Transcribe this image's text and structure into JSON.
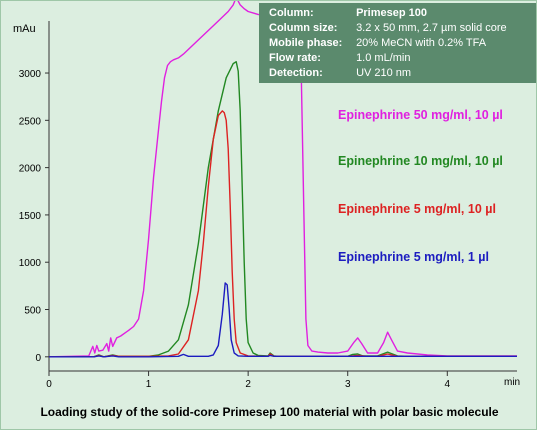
{
  "info_box": {
    "rows": [
      {
        "label": "Column:",
        "value": "Primesep 100"
      },
      {
        "label": "Column size:",
        "value": "3.2 x 50 mm,  2.7 µm solid core"
      },
      {
        "label": "Mobile phase:",
        "value": "20% MeCN with 0.2% TFA"
      },
      {
        "label": "Flow rate:",
        "value": "1.0 mL/min"
      },
      {
        "label": "Detection:",
        "value": "UV 210 nm"
      }
    ]
  },
  "caption": "Loading study of the solid-core Primesep 100 material with polar basic molecule",
  "chart_data": {
    "type": "line",
    "title": "",
    "ylabel": "mAu",
    "xlabel": "min",
    "xlim": [
      0,
      4.7
    ],
    "ylim": [
      -150,
      3550
    ],
    "grid": false,
    "legend_placement": "right",
    "x_ticks": [
      0,
      1,
      2,
      3,
      4
    ],
    "y_ticks": [
      0,
      500,
      1000,
      1500,
      2000,
      2500,
      3000
    ],
    "series": [
      {
        "name": "Epinephrine 50  mg/ml, 10 µl",
        "color": "#e020e0",
        "x": [
          0,
          0.4,
          0.44,
          0.46,
          0.48,
          0.5,
          0.54,
          0.58,
          0.6,
          0.62,
          0.64,
          0.68,
          0.72,
          0.8,
          0.85,
          0.9,
          0.95,
          1.0,
          1.05,
          1.1,
          1.13,
          1.16,
          1.19,
          1.22,
          1.25,
          1.3,
          1.35,
          1.4,
          1.5,
          1.6,
          1.7,
          1.8,
          1.85,
          1.88,
          1.92,
          1.96,
          2.0,
          2.1,
          2.2,
          2.3,
          2.4,
          2.48,
          2.53,
          2.56,
          2.58,
          2.6,
          2.64,
          2.7,
          2.8,
          2.9,
          3.0,
          3.06,
          3.1,
          3.14,
          3.2,
          3.3,
          3.36,
          3.4,
          3.44,
          3.5,
          3.6,
          3.8,
          4.0,
          4.2,
          4.4,
          4.7
        ],
        "y": [
          0,
          10,
          110,
          40,
          120,
          60,
          70,
          140,
          60,
          200,
          110,
          200,
          220,
          280,
          320,
          400,
          700,
          1250,
          1900,
          2400,
          2700,
          2950,
          3080,
          3120,
          3140,
          3160,
          3200,
          3250,
          3350,
          3450,
          3550,
          3650,
          3720,
          3800,
          3720,
          3680,
          3650,
          3620,
          3600,
          3580,
          3560,
          3540,
          3200,
          1500,
          400,
          120,
          60,
          50,
          40,
          40,
          60,
          150,
          200,
          140,
          40,
          40,
          150,
          260,
          180,
          60,
          40,
          20,
          10,
          10,
          10,
          10
        ]
      },
      {
        "name": "Epinephrine 10  mg/ml, 10 µl",
        "color": "#228822",
        "x": [
          0,
          0.45,
          0.5,
          0.55,
          0.64,
          0.7,
          1.0,
          1.1,
          1.2,
          1.3,
          1.4,
          1.5,
          1.6,
          1.7,
          1.78,
          1.85,
          1.88,
          1.9,
          1.92,
          1.94,
          1.96,
          1.98,
          2.0,
          2.05,
          2.1,
          2.2,
          2.22,
          2.26,
          2.3,
          2.5,
          3.0,
          3.05,
          3.1,
          3.15,
          3.3,
          3.4,
          3.5,
          3.6,
          4.7
        ],
        "y": [
          0,
          0,
          20,
          0,
          20,
          5,
          5,
          20,
          60,
          180,
          550,
          1200,
          2000,
          2600,
          2950,
          3100,
          3120,
          3020,
          2600,
          1800,
          1000,
          400,
          150,
          40,
          15,
          10,
          40,
          10,
          5,
          5,
          5,
          25,
          30,
          10,
          10,
          50,
          10,
          5,
          5
        ]
      },
      {
        "name": "Epinephrine 5  mg/ml, 10 µl",
        "color": "#dd2222",
        "x": [
          0,
          0.45,
          0.5,
          0.55,
          0.64,
          0.7,
          1.0,
          1.2,
          1.3,
          1.4,
          1.5,
          1.55,
          1.6,
          1.65,
          1.7,
          1.74,
          1.76,
          1.78,
          1.8,
          1.82,
          1.84,
          1.86,
          1.88,
          1.92,
          2.0,
          2.2,
          2.22,
          2.26,
          2.5,
          3.0,
          3.1,
          3.2,
          3.3,
          3.4,
          3.5,
          3.6,
          4.7
        ],
        "y": [
          0,
          0,
          15,
          0,
          15,
          5,
          5,
          10,
          30,
          180,
          700,
          1200,
          1800,
          2300,
          2550,
          2600,
          2580,
          2500,
          2200,
          1600,
          900,
          400,
          150,
          40,
          10,
          5,
          30,
          5,
          5,
          5,
          15,
          5,
          5,
          30,
          5,
          5,
          5
        ]
      },
      {
        "name": "Epinephrine 5  mg/ml, 1 µl",
        "color": "#1c1cc0",
        "x": [
          0,
          0.45,
          0.5,
          0.55,
          0.64,
          0.7,
          1.0,
          1.3,
          1.35,
          1.4,
          1.6,
          1.65,
          1.7,
          1.74,
          1.77,
          1.79,
          1.81,
          1.83,
          1.86,
          1.9,
          2.0,
          2.2,
          2.22,
          2.26,
          2.5,
          4.7
        ],
        "y": [
          0,
          0,
          10,
          0,
          10,
          0,
          0,
          5,
          25,
          5,
          5,
          20,
          120,
          450,
          780,
          760,
          500,
          180,
          40,
          10,
          5,
          5,
          15,
          5,
          5,
          5
        ]
      }
    ]
  }
}
